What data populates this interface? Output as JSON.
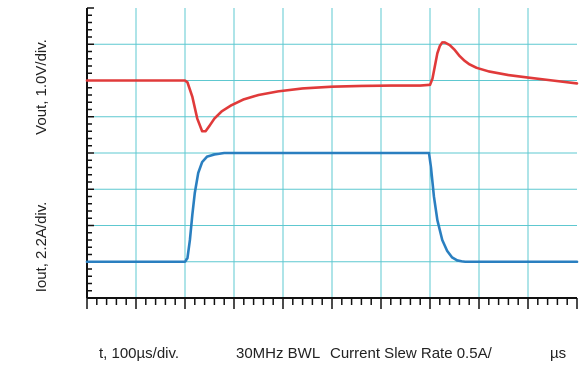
{
  "chart_data": {
    "type": "line",
    "x_divisions": 10,
    "y_divisions": 8,
    "grid": true,
    "colors": {
      "grid": "#5ec8d0",
      "axis": "#111111",
      "vout": "#e03a3a",
      "iout": "#2a7fc0"
    },
    "ylabels": {
      "vout": "Vout, 1.0V/div.",
      "iout": "Iout, 2.2A/div."
    },
    "footer": {
      "time": "t, 100µs/div.",
      "bwl": "30MHz BWL",
      "slew": "Current Slew Rate 0.5A/",
      "slew_unit": "µs"
    },
    "series": [
      {
        "key": "vout",
        "x": [
          0,
          2.0,
          2.05,
          2.15,
          2.25,
          2.35,
          2.42,
          2.5,
          2.6,
          2.75,
          2.95,
          3.2,
          3.5,
          3.9,
          4.4,
          5.0,
          5.6,
          6.2,
          6.8,
          7.0,
          7.05,
          7.1,
          7.15,
          7.2,
          7.25,
          7.3,
          7.4,
          7.5,
          7.6,
          7.7,
          7.8,
          7.95,
          8.2,
          8.6,
          9.0,
          9.5,
          10.0
        ],
        "y": [
          6.0,
          6.0,
          5.95,
          5.55,
          4.95,
          4.6,
          4.6,
          4.75,
          4.95,
          5.15,
          5.32,
          5.48,
          5.6,
          5.7,
          5.78,
          5.83,
          5.85,
          5.86,
          5.86,
          5.88,
          6.05,
          6.4,
          6.75,
          6.95,
          7.05,
          7.05,
          6.98,
          6.85,
          6.68,
          6.55,
          6.45,
          6.35,
          6.25,
          6.15,
          6.08,
          6.0,
          5.92
        ]
      },
      {
        "key": "iout",
        "x": [
          0,
          2.0,
          2.05,
          2.1,
          2.15,
          2.2,
          2.27,
          2.35,
          2.45,
          2.6,
          2.8,
          3.0,
          4.5,
          6.0,
          6.98,
          7.02,
          7.08,
          7.15,
          7.25,
          7.35,
          7.45,
          7.55,
          7.65,
          7.72,
          7.8,
          8.5,
          10.0
        ],
        "y": [
          1.0,
          1.0,
          1.1,
          1.6,
          2.3,
          2.9,
          3.45,
          3.75,
          3.9,
          3.96,
          4.0,
          4.0,
          4.0,
          4.0,
          4.0,
          3.6,
          2.8,
          2.15,
          1.6,
          1.3,
          1.12,
          1.04,
          1.01,
          1.0,
          1.0,
          1.0,
          1.0
        ]
      }
    ]
  }
}
